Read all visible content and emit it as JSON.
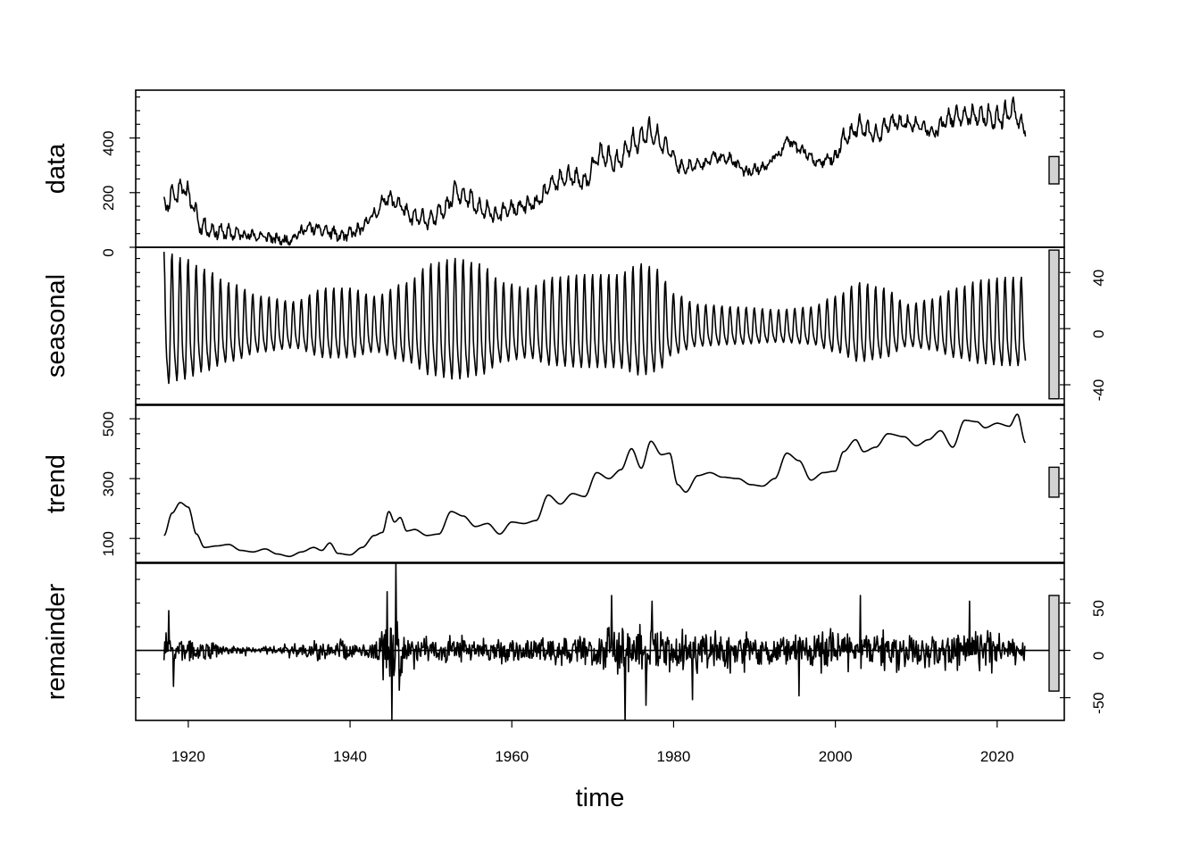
{
  "chart_data": {
    "type": "line",
    "title": "",
    "xlabel": "time",
    "xlim": [
      1913.5,
      2028.3
    ],
    "x_ticks": [
      1920,
      1940,
      1960,
      1980,
      2000,
      2020
    ],
    "x_tick_labels": [
      "1920",
      "1940",
      "1960",
      "1980",
      "2000",
      "2020"
    ],
    "x_start": 1917.0,
    "x_end": 2023.5,
    "scale_bar_colour": "#d3d3d3",
    "panels": [
      {
        "name": "data",
        "label": "data",
        "ylim": [
          0,
          575
        ],
        "tick_side": "left",
        "ticks": [
          0,
          200,
          400
        ],
        "tick_labels": [
          "0",
          "200",
          "400"
        ],
        "minor_step": 50,
        "scale_bar": [
          232,
          332
        ],
        "trend_points": [
          [
            1917.0,
            150
          ],
          [
            1918.0,
            190
          ],
          [
            1919.5,
            220
          ],
          [
            1920.5,
            160
          ],
          [
            1921.5,
            80
          ],
          [
            1923,
            60
          ],
          [
            1926,
            50
          ],
          [
            1929,
            40
          ],
          [
            1932,
            25
          ],
          [
            1935,
            70
          ],
          [
            1937,
            60
          ],
          [
            1939,
            40
          ],
          [
            1941,
            60
          ],
          [
            1943,
            120
          ],
          [
            1944.5,
            180
          ],
          [
            1946,
            160
          ],
          [
            1947.5,
            110
          ],
          [
            1950,
            100
          ],
          [
            1952,
            150
          ],
          [
            1953,
            210
          ],
          [
            1954.5,
            180
          ],
          [
            1956,
            140
          ],
          [
            1958,
            120
          ],
          [
            1960,
            140
          ],
          [
            1963,
            160
          ],
          [
            1965,
            230
          ],
          [
            1967,
            260
          ],
          [
            1969,
            240
          ],
          [
            1971,
            340
          ],
          [
            1973,
            310
          ],
          [
            1975,
            380
          ],
          [
            1977,
            420
          ],
          [
            1979,
            370
          ],
          [
            1981,
            290
          ],
          [
            1983,
            300
          ],
          [
            1985,
            330
          ],
          [
            1987,
            320
          ],
          [
            1989,
            280
          ],
          [
            1991,
            290
          ],
          [
            1993,
            340
          ],
          [
            1994,
            390
          ],
          [
            1996,
            350
          ],
          [
            1998,
            310
          ],
          [
            2000,
            330
          ],
          [
            2001,
            400
          ],
          [
            2003,
            440
          ],
          [
            2005,
            410
          ],
          [
            2007,
            460
          ],
          [
            2010,
            450
          ],
          [
            2012,
            420
          ],
          [
            2014,
            470
          ],
          [
            2016,
            480
          ],
          [
            2018,
            480
          ],
          [
            2020,
            470
          ],
          [
            2022,
            500
          ],
          [
            2023.5,
            430
          ]
        ],
        "noise_amp": 14,
        "seasonal_weight": 1.0,
        "seed": 11
      },
      {
        "name": "seasonal",
        "label": "seasonal",
        "ylim": [
          -54,
          58
        ],
        "tick_side": "right",
        "ticks": [
          -40,
          0,
          40
        ],
        "tick_labels": [
          "-40",
          "0",
          "40"
        ],
        "minor_step": 10,
        "scale_bar": [
          -50,
          56
        ],
        "amplitude_points": [
          [
            1917.0,
            57
          ],
          [
            1919.5,
            52
          ],
          [
            1922,
            44
          ],
          [
            1925,
            34
          ],
          [
            1929,
            24
          ],
          [
            1933,
            20
          ],
          [
            1937,
            30
          ],
          [
            1940,
            30
          ],
          [
            1943,
            24
          ],
          [
            1947,
            34
          ],
          [
            1950,
            48
          ],
          [
            1953,
            52
          ],
          [
            1956,
            48
          ],
          [
            1959,
            34
          ],
          [
            1962,
            30
          ],
          [
            1965,
            38
          ],
          [
            1969,
            40
          ],
          [
            1973,
            40
          ],
          [
            1976,
            48
          ],
          [
            1978,
            44
          ],
          [
            1980,
            26
          ],
          [
            1983,
            18
          ],
          [
            1988,
            16
          ],
          [
            1993,
            14
          ],
          [
            1997,
            16
          ],
          [
            2000,
            24
          ],
          [
            2003,
            34
          ],
          [
            2006,
            30
          ],
          [
            2009,
            18
          ],
          [
            2012,
            22
          ],
          [
            2015,
            30
          ],
          [
            2018,
            36
          ],
          [
            2021,
            38
          ],
          [
            2023.5,
            38
          ]
        ]
      },
      {
        "name": "trend",
        "label": "trend",
        "ylim": [
          20,
          545
        ],
        "tick_side": "left",
        "ticks": [
          100,
          300,
          500
        ],
        "tick_labels": [
          "100",
          "300",
          "500"
        ],
        "minor_step": 50,
        "scale_bar": [
          238,
          338
        ],
        "points": [
          [
            1917.0,
            110
          ],
          [
            1918.0,
            185
          ],
          [
            1919.0,
            220
          ],
          [
            1920.0,
            205
          ],
          [
            1921.0,
            115
          ],
          [
            1922.0,
            70
          ],
          [
            1923.5,
            75
          ],
          [
            1925.0,
            80
          ],
          [
            1926.5,
            60
          ],
          [
            1928.0,
            55
          ],
          [
            1929.5,
            65
          ],
          [
            1931.0,
            48
          ],
          [
            1932.5,
            40
          ],
          [
            1934.0,
            55
          ],
          [
            1935.5,
            70
          ],
          [
            1936.5,
            60
          ],
          [
            1937.5,
            85
          ],
          [
            1938.5,
            50
          ],
          [
            1940.0,
            45
          ],
          [
            1941.5,
            70
          ],
          [
            1943.0,
            110
          ],
          [
            1944.0,
            120
          ],
          [
            1944.8,
            190
          ],
          [
            1945.5,
            155
          ],
          [
            1946.2,
            170
          ],
          [
            1947.0,
            125
          ],
          [
            1948.0,
            130
          ],
          [
            1949.5,
            110
          ],
          [
            1951.0,
            115
          ],
          [
            1952.5,
            190
          ],
          [
            1954.0,
            175
          ],
          [
            1955.5,
            140
          ],
          [
            1957.0,
            150
          ],
          [
            1958.5,
            115
          ],
          [
            1960.0,
            155
          ],
          [
            1961.5,
            150
          ],
          [
            1963.0,
            160
          ],
          [
            1964.5,
            245
          ],
          [
            1966.0,
            215
          ],
          [
            1967.5,
            250
          ],
          [
            1969.0,
            240
          ],
          [
            1970.5,
            320
          ],
          [
            1972.0,
            300
          ],
          [
            1973.5,
            330
          ],
          [
            1974.8,
            400
          ],
          [
            1976.0,
            335
          ],
          [
            1977.2,
            425
          ],
          [
            1978.5,
            380
          ],
          [
            1979.5,
            385
          ],
          [
            1980.5,
            280
          ],
          [
            1981.5,
            255
          ],
          [
            1983.0,
            310
          ],
          [
            1984.5,
            320
          ],
          [
            1986.0,
            305
          ],
          [
            1988.0,
            300
          ],
          [
            1989.5,
            280
          ],
          [
            1991.0,
            275
          ],
          [
            1992.5,
            300
          ],
          [
            1994.0,
            385
          ],
          [
            1995.5,
            360
          ],
          [
            1997.0,
            295
          ],
          [
            1998.5,
            320
          ],
          [
            2000.0,
            325
          ],
          [
            2001.0,
            390
          ],
          [
            2002.5,
            430
          ],
          [
            2003.5,
            390
          ],
          [
            2005.0,
            405
          ],
          [
            2006.5,
            450
          ],
          [
            2008.5,
            440
          ],
          [
            2010.0,
            410
          ],
          [
            2011.5,
            430
          ],
          [
            2013.0,
            460
          ],
          [
            2014.5,
            405
          ],
          [
            2016.0,
            495
          ],
          [
            2017.5,
            490
          ],
          [
            2018.5,
            470
          ],
          [
            2020.0,
            485
          ],
          [
            2021.5,
            475
          ],
          [
            2022.5,
            515
          ],
          [
            2023.5,
            420
          ]
        ]
      },
      {
        "name": "remainder",
        "label": "remainder",
        "ylim": [
          -74,
          92
        ],
        "tick_side": "right",
        "ticks": [
          -50,
          0,
          50
        ],
        "tick_labels": [
          "-50",
          "0",
          "50"
        ],
        "minor_step": 25,
        "scale_bar": [
          -43,
          58
        ],
        "zero_line": true,
        "envelope_points": [
          [
            1917,
            28
          ],
          [
            1920,
            22
          ],
          [
            1922,
            16
          ],
          [
            1925,
            8
          ],
          [
            1930,
            6
          ],
          [
            1934,
            14
          ],
          [
            1938,
            18
          ],
          [
            1941,
            14
          ],
          [
            1943,
            24
          ],
          [
            1944.5,
            58
          ],
          [
            1946,
            60
          ],
          [
            1947.5,
            28
          ],
          [
            1950,
            22
          ],
          [
            1955,
            22
          ],
          [
            1960,
            20
          ],
          [
            1965,
            26
          ],
          [
            1970,
            30
          ],
          [
            1973,
            44
          ],
          [
            1976,
            44
          ],
          [
            1979,
            36
          ],
          [
            1982,
            34
          ],
          [
            1986,
            30
          ],
          [
            1990,
            28
          ],
          [
            1995,
            30
          ],
          [
            2000,
            32
          ],
          [
            2005,
            34
          ],
          [
            2010,
            32
          ],
          [
            2015,
            34
          ],
          [
            2020,
            30
          ],
          [
            2023.5,
            22
          ]
        ],
        "spikes": [
          [
            1917.6,
            42
          ],
          [
            1918.2,
            -38
          ],
          [
            1944.6,
            62
          ],
          [
            1945.2,
            -74
          ],
          [
            1945.7,
            92
          ],
          [
            1946.1,
            -42
          ],
          [
            1972.3,
            58
          ],
          [
            1974.0,
            -78
          ],
          [
            1976.6,
            -58
          ],
          [
            1977.3,
            52
          ],
          [
            1982.3,
            -52
          ],
          [
            1995.5,
            -48
          ],
          [
            2003.1,
            58
          ],
          [
            2016.6,
            52
          ]
        ]
      }
    ]
  }
}
